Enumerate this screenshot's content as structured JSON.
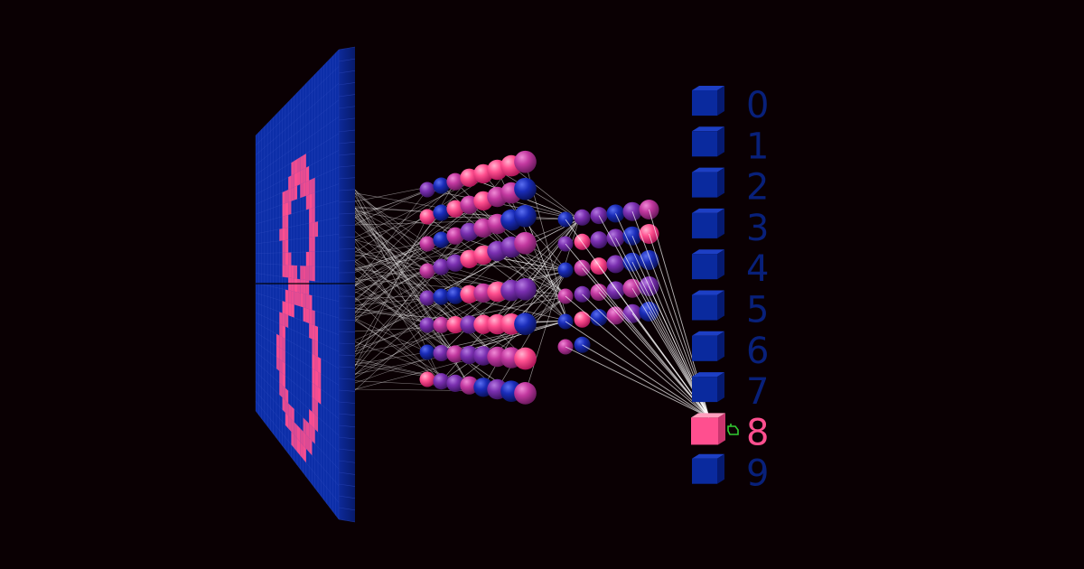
{
  "colors": {
    "background": "#0a0003",
    "inactive": "#0a2a9e",
    "inactive_label": "#08207a",
    "active": "#ff4f8f",
    "mid": "#7a2fb0",
    "edge": "#ffffff",
    "cursor": "#33cc33"
  },
  "input_digit": "8",
  "output": {
    "labels": [
      "0",
      "1",
      "2",
      "3",
      "4",
      "5",
      "6",
      "7",
      "8",
      "9"
    ],
    "predicted_index": 8
  },
  "icons": {
    "cursor": "hand-pointer-icon"
  }
}
